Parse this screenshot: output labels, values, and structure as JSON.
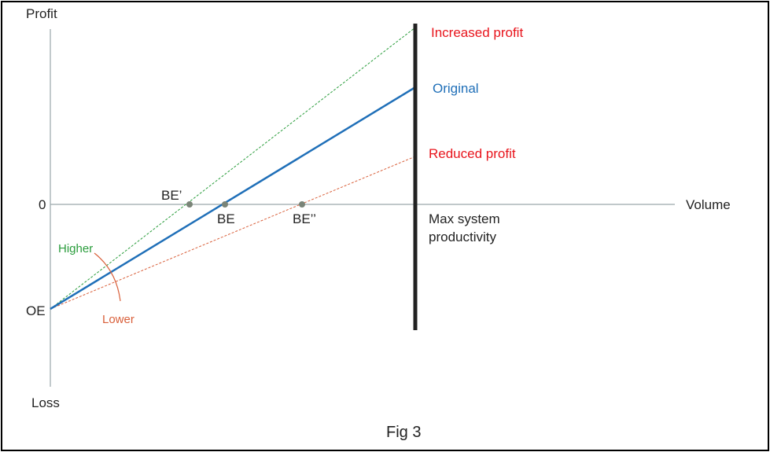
{
  "figure": {
    "caption": "Fig 3",
    "y_axis": {
      "top_label": "Profit",
      "bottom_label": "Loss",
      "zero_label": "0",
      "oe_label": "OE"
    },
    "x_axis": {
      "label": "Volume"
    },
    "capacity_label_line1": "Max system",
    "capacity_label_line2": "productivity",
    "lines": {
      "increased": {
        "label": "Increased profit",
        "color": "#2a9d3c",
        "label_color": "#e8141c"
      },
      "original": {
        "label": "Original",
        "color": "#1f6fb8",
        "label_color": "#1f6fb8"
      },
      "reduced": {
        "label": "Reduced profit",
        "color": "#d9603b",
        "label_color": "#e8141c"
      }
    },
    "break_even": {
      "be_prime": "BE’",
      "be": "BE",
      "be_double_prime": "BE’’"
    },
    "slope_arc": {
      "higher": "Higher",
      "lower": "Lower",
      "higher_color": "#2a9d3c",
      "lower_color": "#d9603b"
    },
    "colors": {
      "axis": "#9aa7aa",
      "capacity_bar": "#222222",
      "points": "#7a8478"
    }
  }
}
